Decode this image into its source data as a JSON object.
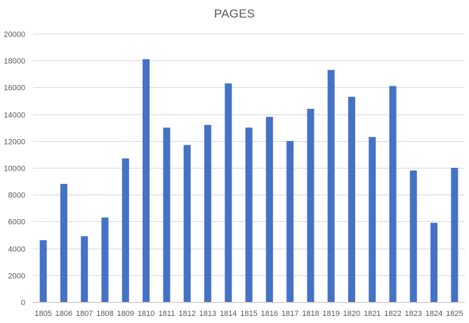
{
  "chart_data": {
    "type": "bar",
    "title": "PAGES",
    "xlabel": "",
    "ylabel": "",
    "categories": [
      "1805",
      "1806",
      "1807",
      "1808",
      "1809",
      "1810",
      "1811",
      "1812",
      "1813",
      "1814",
      "1815",
      "1816",
      "1817",
      "1818",
      "1819",
      "1820",
      "1821",
      "1822",
      "1823",
      "1824",
      "1825"
    ],
    "series": [
      {
        "values": [
          4600,
          8800,
          4900,
          6300,
          10700,
          18100,
          13000,
          11700,
          13200,
          16300,
          13000,
          13800,
          12000,
          14400,
          17300,
          15300,
          12300,
          16100,
          9800,
          5900,
          10000
        ]
      }
    ],
    "ylim": [
      0,
      20000
    ],
    "yticks": [
      0,
      2000,
      4000,
      6000,
      8000,
      10000,
      12000,
      14000,
      16000,
      18000,
      20000
    ],
    "grid": true,
    "legend": "none",
    "bar_color": "#4472c4"
  }
}
